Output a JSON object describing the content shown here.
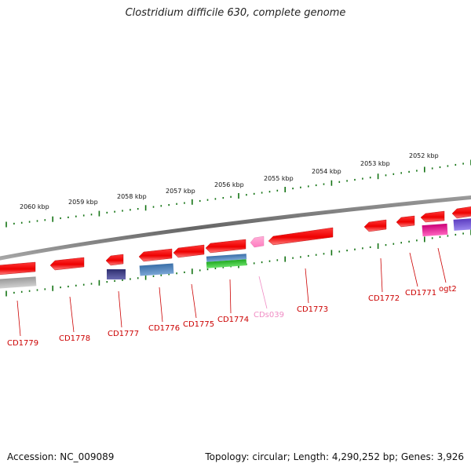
{
  "title": "Clostridium difficile 630, complete genome",
  "accession_line": "Accession: NC_009089",
  "summary_line": "Topology: circular; Length: 4,290,252 bp; Genes: 3,926",
  "colors": {
    "cds": "#ff0000",
    "trna": "#ff66bb",
    "cog_blue": "#4f84c4",
    "cog_navy": "#3f3f8f",
    "cog_green": "#33cc33",
    "cog_magenta": "#ee1199",
    "cog_violet": "#7755dd",
    "cog_gray": "#aaaaaa",
    "tick": "#137313",
    "backbone": "#777777"
  },
  "kbp_labels": [
    "2060 kbp",
    "2059 kbp",
    "2058 kbp",
    "2057 kbp",
    "2056 kbp",
    "2055 kbp",
    "2054 kbp",
    "2053 kbp",
    "2052 kbp"
  ],
  "genes": [
    {
      "name": "CD1779",
      "color": "#cc0000"
    },
    {
      "name": "CD1778",
      "color": "#cc0000"
    },
    {
      "name": "CD1777",
      "color": "#cc0000"
    },
    {
      "name": "CD1776",
      "color": "#cc0000"
    },
    {
      "name": "CD1775",
      "color": "#cc0000"
    },
    {
      "name": "CD1774",
      "color": "#cc0000"
    },
    {
      "name": "CDs039",
      "color": "#f08cc4"
    },
    {
      "name": "CD1773",
      "color": "#cc0000"
    },
    {
      "name": "CD1772",
      "color": "#cc0000"
    },
    {
      "name": "CD1771",
      "color": "#cc0000"
    },
    {
      "name": "ogt2",
      "color": "#cc0000"
    }
  ]
}
